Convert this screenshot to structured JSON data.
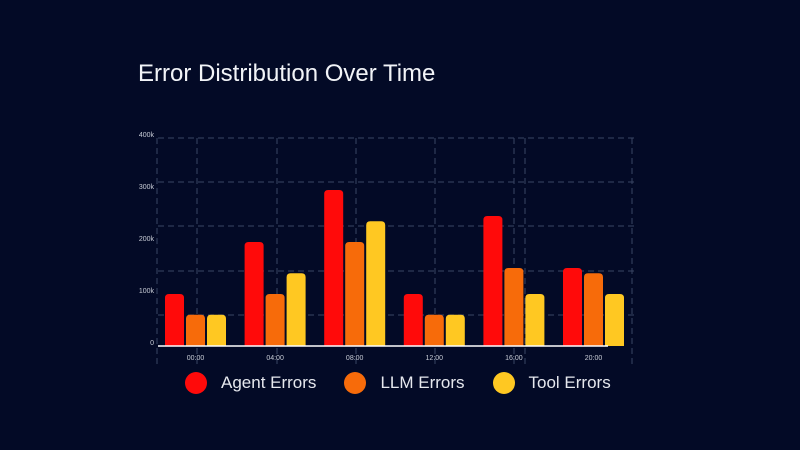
{
  "chart_data": {
    "type": "bar",
    "title": "Error Distribution Over Time",
    "xlabel": "",
    "ylabel": "",
    "categories": [
      "00:00",
      "04:00",
      "08:00",
      "12:00",
      "16:00",
      "20:00"
    ],
    "series": [
      {
        "name": "Agent Errors",
        "color": "#ff0a0a",
        "values": [
          100000,
          200000,
          300000,
          100000,
          250000,
          150000
        ]
      },
      {
        "name": "LLM Errors",
        "color": "#f76b0a",
        "values": [
          60000,
          100000,
          200000,
          60000,
          150000,
          140000
        ]
      },
      {
        "name": "Tool Errors",
        "color": "#ffc822",
        "values": [
          60000,
          140000,
          240000,
          60000,
          100000,
          100000
        ]
      }
    ],
    "yticks": [
      "0",
      "100k",
      "200k",
      "300k",
      "400k"
    ],
    "ylim": [
      0,
      400000
    ],
    "grid": true,
    "legend_position": "bottom"
  }
}
